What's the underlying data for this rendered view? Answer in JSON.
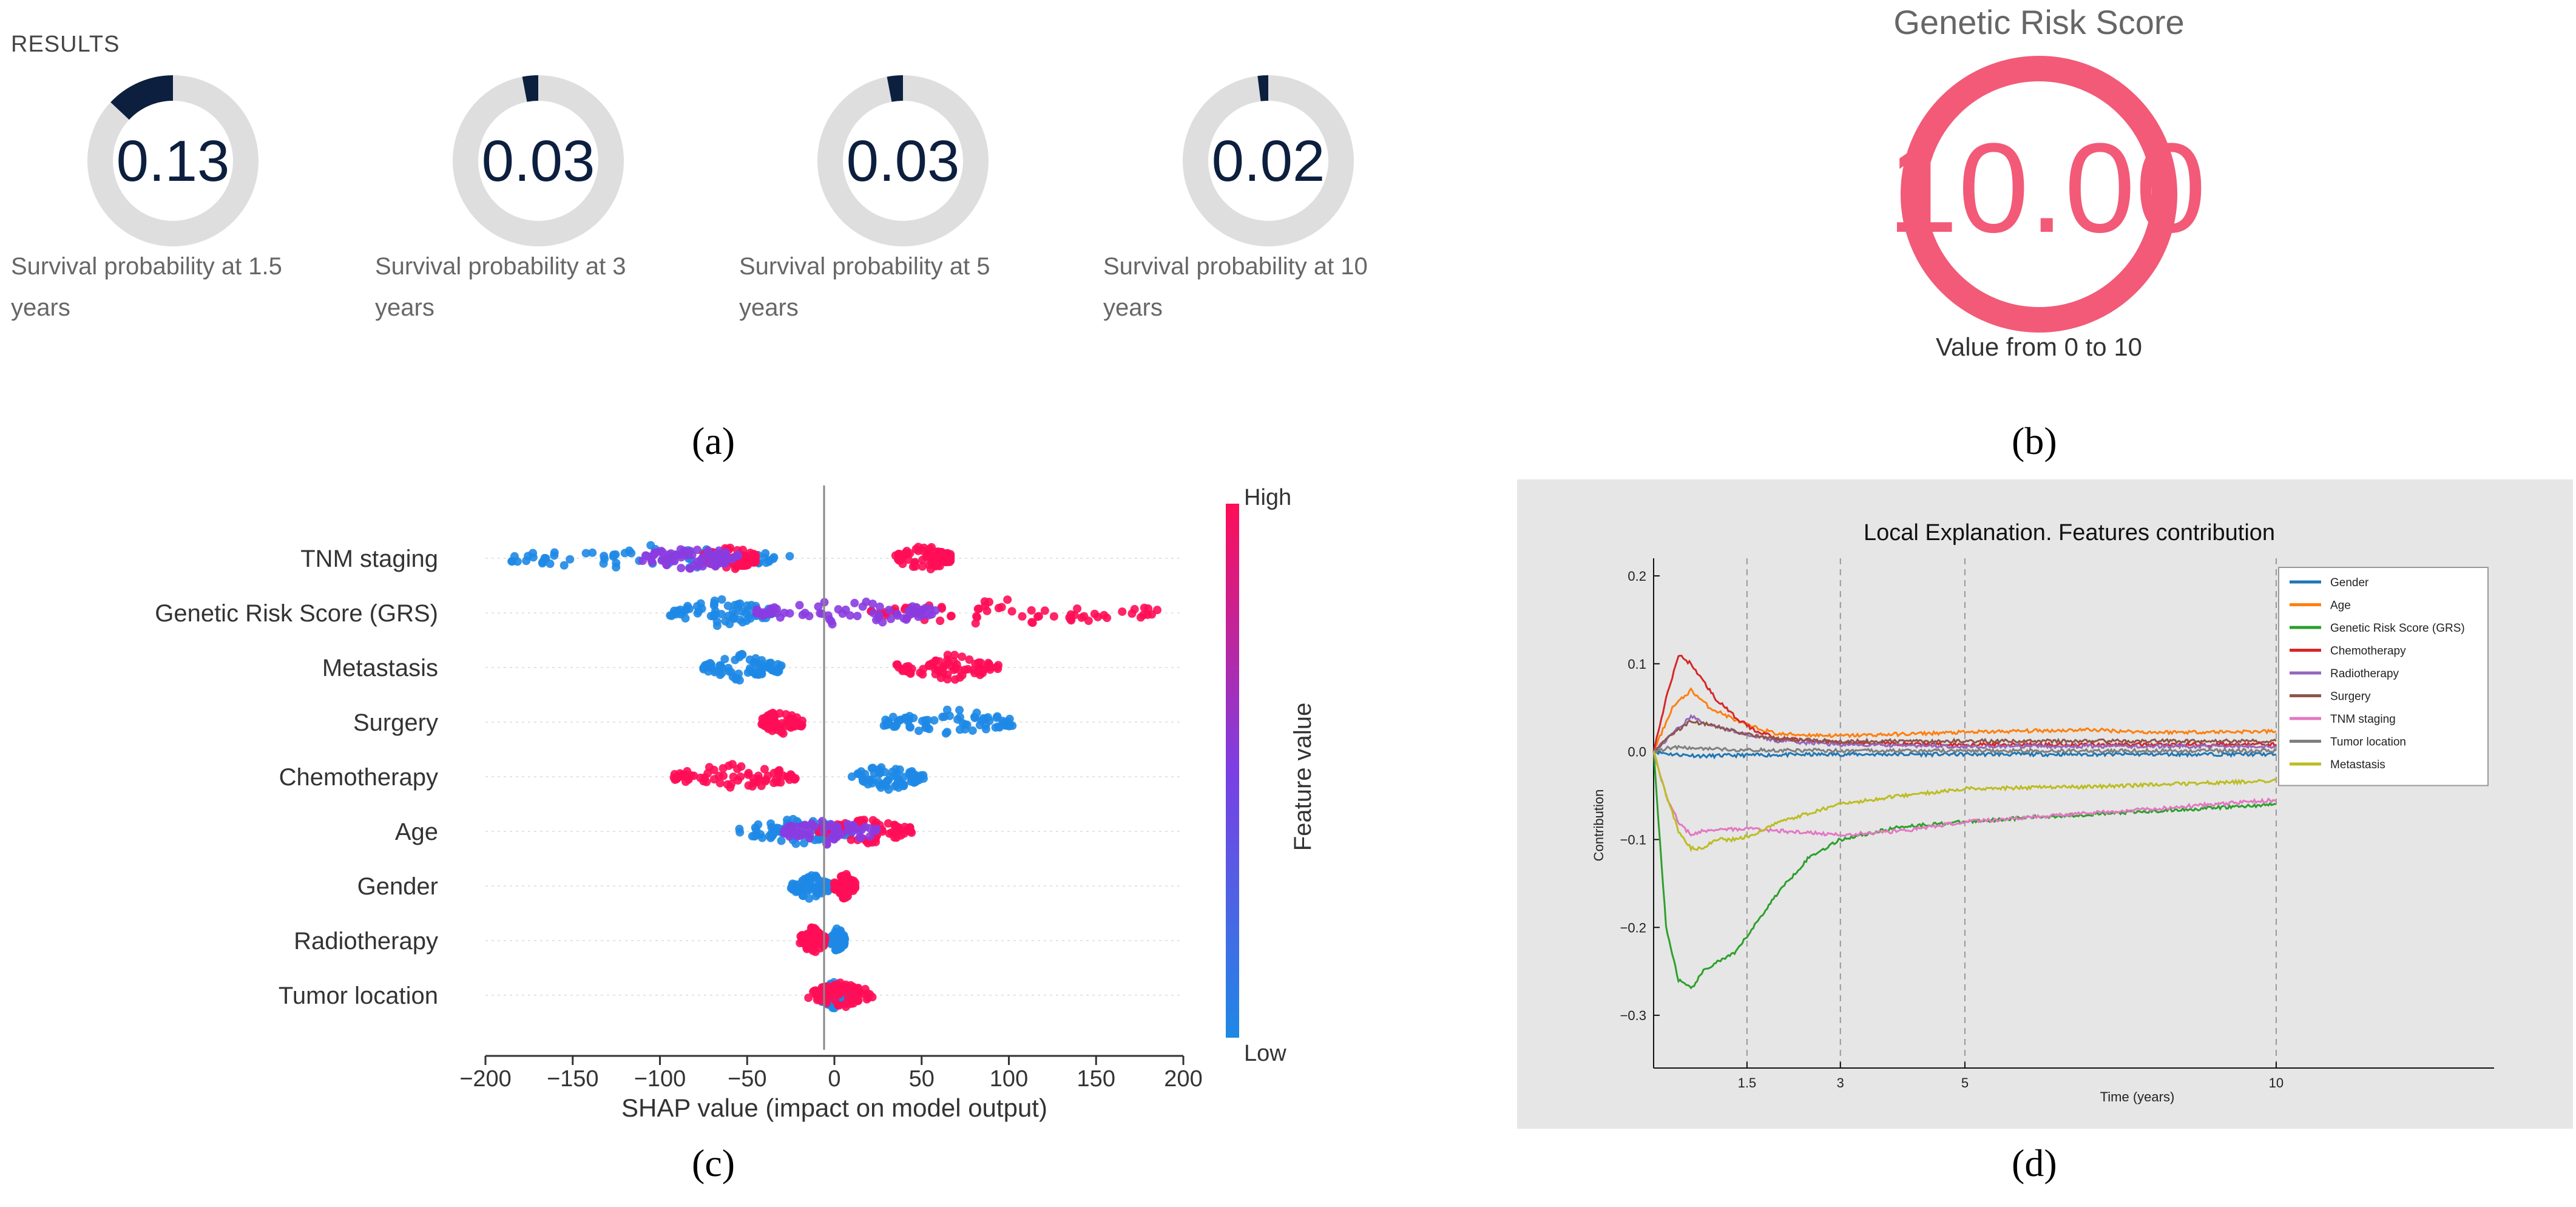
{
  "panel_a": {
    "title": "RESULTS",
    "gauges": [
      {
        "value": 0.13,
        "label": "0.13",
        "caption_line1": "Survival probability at 1.5",
        "caption_line2": "years"
      },
      {
        "value": 0.03,
        "label": "0.03",
        "caption_line1": "Survival probability at 3",
        "caption_line2": "years"
      },
      {
        "value": 0.03,
        "label": "0.03",
        "caption_line1": "Survival probability at 5",
        "caption_line2": "years"
      },
      {
        "value": 0.02,
        "label": "0.02",
        "caption_line1": "Survival probability at 10",
        "caption_line2": "years"
      }
    ],
    "panel_label": "(a)",
    "colors": {
      "track": "#dedede",
      "fill": "#0d1f3f",
      "text": "#0d1f3f"
    }
  },
  "panel_b": {
    "title": "Genetic Risk Score",
    "value": 10.0,
    "value_text": "10.00",
    "max": 10,
    "caption": "Value from 0 to 10",
    "panel_label": "(b)",
    "colors": {
      "ring": "#f25a78"
    }
  },
  "chart_data": [
    {
      "type": "scatter",
      "subtype": "shap_beeswarm",
      "panel_label": "(c)",
      "xlabel": "SHAP value (impact on model output)",
      "xlim": [
        -200,
        200
      ],
      "xticks": [
        -200,
        -150,
        -100,
        -50,
        0,
        50,
        100,
        150,
        200
      ],
      "xtick_labels": [
        "−200",
        "−150",
        "−100",
        "−50",
        "0",
        "50",
        "100",
        "150",
        "200"
      ],
      "colorbar": {
        "label": "Feature value",
        "high": "High",
        "low": "Low",
        "low_color": "#1e88e5",
        "high_color": "#ff0d57"
      },
      "features": [
        {
          "name": "TNM staging",
          "low_range": [
            -185,
            -25
          ],
          "high_range": [
            -75,
            -45
          ],
          "high_pos_range": [
            35,
            68
          ],
          "mid_range": [
            -110,
            -55
          ]
        },
        {
          "name": "Genetic Risk Score (GRS)",
          "low_range": [
            -95,
            -35
          ],
          "high_range": [
            20,
            190
          ],
          "mid_range": [
            -45,
            60
          ]
        },
        {
          "name": "Metastasis",
          "low_range": [
            -75,
            -30
          ],
          "high_range": [
            35,
            95
          ]
        },
        {
          "name": "Surgery",
          "low_range": [
            28,
            102
          ],
          "high_range": [
            -42,
            -18
          ]
        },
        {
          "name": "Chemotherapy",
          "low_range": [
            10,
            52
          ],
          "high_range": [
            -92,
            -22
          ]
        },
        {
          "name": "Age",
          "low_range": [
            -55,
            10
          ],
          "high_range": [
            -10,
            45
          ],
          "mid_range": [
            -30,
            25
          ]
        },
        {
          "name": "Gender",
          "low_range": [
            -25,
            -2
          ],
          "high_range": [
            0,
            12
          ]
        },
        {
          "name": "Radiotherapy",
          "low_range": [
            -2,
            6
          ],
          "high_range": [
            -20,
            -5
          ]
        },
        {
          "name": "Tumor location",
          "low_range": [
            -10,
            10
          ],
          "high_range": [
            -15,
            22
          ]
        }
      ]
    },
    {
      "type": "line",
      "panel_label": "(d)",
      "title": "Local Explanation. Features contribution",
      "xlabel": "Time (years)",
      "ylabel": "Contribution",
      "xlim": [
        0,
        13.5
      ],
      "ylim": [
        -0.36,
        0.22
      ],
      "xticks": [
        1.5,
        3,
        5,
        10
      ],
      "xtick_labels": [
        "1.5",
        "3",
        "5",
        "10"
      ],
      "yticks": [
        0.2,
        0.1,
        0.0,
        -0.1,
        -0.2,
        -0.3
      ],
      "ytick_labels": [
        "0.2",
        "0.1",
        "0.0",
        "−0.1",
        "−0.2",
        "−0.3"
      ],
      "vlines": [
        1.5,
        3,
        5,
        10
      ],
      "series": [
        {
          "name": "Gender",
          "color": "#1f77b4",
          "x": [
            0,
            0.3,
            0.8,
            1.5,
            3,
            5,
            10
          ],
          "y": [
            0.0,
            -0.003,
            -0.005,
            -0.004,
            -0.003,
            -0.003,
            -0.003
          ]
        },
        {
          "name": "Age",
          "color": "#ff7f0e",
          "x": [
            0,
            0.3,
            0.6,
            0.9,
            1.2,
            1.5,
            2,
            3,
            4,
            5,
            7,
            8,
            10
          ],
          "y": [
            0.0,
            0.05,
            0.07,
            0.05,
            0.04,
            0.03,
            0.02,
            0.018,
            0.02,
            0.022,
            0.025,
            0.022,
            0.023
          ]
        },
        {
          "name": "Genetic Risk Score (GRS)",
          "color": "#2ca02c",
          "x": [
            0,
            0.2,
            0.4,
            0.6,
            0.8,
            1.0,
            1.3,
            1.6,
            2,
            2.5,
            3,
            4,
            5,
            6,
            8,
            10
          ],
          "y": [
            0.0,
            -0.2,
            -0.26,
            -0.27,
            -0.25,
            -0.24,
            -0.23,
            -0.2,
            -0.16,
            -0.12,
            -0.1,
            -0.085,
            -0.08,
            -0.075,
            -0.068,
            -0.06
          ]
        },
        {
          "name": "Chemotherapy",
          "color": "#d62728",
          "x": [
            0,
            0.2,
            0.4,
            0.6,
            0.8,
            1.0,
            1.3,
            1.6,
            2,
            3,
            5,
            10
          ],
          "y": [
            0.0,
            0.06,
            0.11,
            0.1,
            0.08,
            0.06,
            0.04,
            0.025,
            0.015,
            0.01,
            0.008,
            0.008
          ]
        },
        {
          "name": "Radiotherapy",
          "color": "#9467bd",
          "x": [
            0,
            0.3,
            0.6,
            0.9,
            1.2,
            1.5,
            2,
            3,
            5,
            10
          ],
          "y": [
            0.0,
            0.02,
            0.04,
            0.03,
            0.025,
            0.02,
            0.012,
            0.008,
            0.006,
            0.006
          ]
        },
        {
          "name": "Surgery",
          "color": "#8c564b",
          "x": [
            0,
            0.3,
            0.6,
            0.9,
            1.2,
            1.5,
            2,
            3,
            5,
            10
          ],
          "y": [
            0.0,
            0.02,
            0.035,
            0.03,
            0.025,
            0.02,
            0.014,
            0.012,
            0.012,
            0.012
          ]
        },
        {
          "name": "TNM staging",
          "color": "#e377c2",
          "x": [
            0,
            0.2,
            0.4,
            0.6,
            0.8,
            1.0,
            1.5,
            2,
            3,
            4,
            5,
            7,
            10
          ],
          "y": [
            0.0,
            -0.05,
            -0.08,
            -0.095,
            -0.09,
            -0.088,
            -0.088,
            -0.09,
            -0.095,
            -0.09,
            -0.08,
            -0.07,
            -0.055
          ]
        },
        {
          "name": "Tumor location",
          "color": "#7f7f7f",
          "x": [
            0,
            0.3,
            0.8,
            1.5,
            3,
            5,
            10
          ],
          "y": [
            0.0,
            0.005,
            0.003,
            0.002,
            0.001,
            0.001,
            0.001
          ]
        },
        {
          "name": "Metastasis",
          "color": "#bcbd22",
          "x": [
            0,
            0.2,
            0.4,
            0.6,
            0.8,
            1.0,
            1.3,
            1.6,
            2,
            3,
            4,
            5,
            7,
            10
          ],
          "y": [
            0.0,
            -0.05,
            -0.09,
            -0.11,
            -0.11,
            -0.1,
            -0.1,
            -0.095,
            -0.08,
            -0.06,
            -0.05,
            -0.042,
            -0.04,
            -0.033
          ]
        }
      ]
    }
  ]
}
